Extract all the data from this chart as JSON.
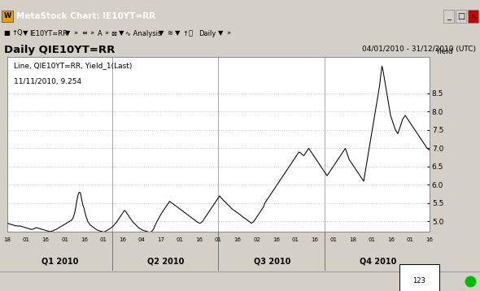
{
  "title_bar": "MetaStock Chart: IE10YT=RR",
  "chart_title": "Daily QIE10YT=RR",
  "date_range": "04/01/2010 - 31/12/2010 (UTC)",
  "ylabel": "Yield",
  "annotation_line1": "Line, QIE10YT=RR, Yield_1(Last)",
  "annotation_line2": "11/11/2010, 9.254",
  "ylim": [
    4.72,
    9.5
  ],
  "yticks": [
    5.0,
    5.5,
    6.0,
    6.5,
    7.0,
    7.5,
    8.0,
    8.5
  ],
  "bg_color": "#d4d0c8",
  "plot_bg": "#ffffff",
  "line_color": "#000000",
  "grid_color": "#b8b8b8",
  "x_quarter_labels": [
    "Q1 2010",
    "Q2 2010",
    "Q3 2010",
    "Q4 2010"
  ],
  "x_minor_ticks": [
    "18",
    "01",
    "16",
    "01",
    "16",
    "01",
    "16",
    "04",
    "17",
    "01",
    "16",
    "01",
    "16",
    "02",
    "16",
    "01",
    "16",
    "01",
    "18",
    "01",
    "16",
    "01",
    "16"
  ],
  "titlebar_color": "#0a246a",
  "titlebar_text_color": "#ffffff",
  "yields": [
    4.96,
    4.94,
    4.93,
    4.92,
    4.91,
    4.9,
    4.89,
    4.88,
    4.88,
    4.87,
    4.88,
    4.87,
    4.86,
    4.85,
    4.84,
    4.83,
    4.82,
    4.81,
    4.8,
    4.79,
    4.78,
    4.79,
    4.8,
    4.82,
    4.83,
    4.82,
    4.81,
    4.8,
    4.79,
    4.78,
    4.77,
    4.76,
    4.75,
    4.74,
    4.73,
    4.72,
    4.73,
    4.74,
    4.75,
    4.77,
    4.78,
    4.8,
    4.82,
    4.84,
    4.86,
    4.88,
    4.9,
    4.92,
    4.94,
    4.96,
    4.98,
    5.0,
    5.02,
    5.04,
    5.1,
    5.2,
    5.35,
    5.55,
    5.72,
    5.8,
    5.78,
    5.6,
    5.45,
    5.35,
    5.2,
    5.1,
    5.0,
    4.95,
    4.9,
    4.88,
    4.85,
    4.83,
    4.8,
    4.78,
    4.76,
    4.75,
    4.74,
    4.73,
    4.72,
    4.71,
    4.72,
    4.74,
    4.76,
    4.78,
    4.8,
    4.82,
    4.85,
    4.88,
    4.92,
    4.96,
    5.0,
    5.05,
    5.1,
    5.15,
    5.2,
    5.25,
    5.3,
    5.28,
    5.22,
    5.18,
    5.12,
    5.08,
    5.03,
    4.98,
    4.95,
    4.92,
    4.88,
    4.85,
    4.82,
    4.8,
    4.78,
    4.76,
    4.75,
    4.74,
    4.73,
    4.72,
    4.71,
    4.7,
    4.72,
    4.75,
    4.8,
    4.88,
    4.95,
    5.02,
    5.08,
    5.14,
    5.2,
    5.25,
    5.3,
    5.35,
    5.4,
    5.45,
    5.5,
    5.55,
    5.52,
    5.5,
    5.48,
    5.45,
    5.43,
    5.4,
    5.38,
    5.35,
    5.33,
    5.3,
    5.28,
    5.25,
    5.23,
    5.2,
    5.18,
    5.15,
    5.13,
    5.1,
    5.08,
    5.05,
    5.03,
    5.0,
    4.98,
    4.96,
    4.95,
    4.97,
    5.0,
    5.05,
    5.1,
    5.15,
    5.2,
    5.25,
    5.3,
    5.35,
    5.4,
    5.45,
    5.5,
    5.55,
    5.6,
    5.65,
    5.7,
    5.65,
    5.62,
    5.58,
    5.55,
    5.52,
    5.48,
    5.45,
    5.42,
    5.38,
    5.35,
    5.32,
    5.3,
    5.27,
    5.25,
    5.23,
    5.2,
    5.18,
    5.15,
    5.12,
    5.1,
    5.08,
    5.05,
    5.03,
    5.0,
    4.98,
    4.95,
    4.97,
    5.0,
    5.05,
    5.1,
    5.15,
    5.2,
    5.25,
    5.3,
    5.35,
    5.4,
    5.5,
    5.55,
    5.6,
    5.65,
    5.7,
    5.75,
    5.8,
    5.85,
    5.9,
    5.95,
    6.0,
    6.05,
    6.1,
    6.15,
    6.2,
    6.25,
    6.3,
    6.35,
    6.4,
    6.45,
    6.5,
    6.55,
    6.6,
    6.65,
    6.7,
    6.75,
    6.8,
    6.85,
    6.9,
    6.88,
    6.85,
    6.82,
    6.8,
    6.85,
    6.9,
    6.95,
    7.0,
    6.95,
    6.9,
    6.85,
    6.8,
    6.75,
    6.7,
    6.65,
    6.6,
    6.55,
    6.5,
    6.45,
    6.4,
    6.35,
    6.3,
    6.25,
    6.3,
    6.35,
    6.4,
    6.45,
    6.5,
    6.55,
    6.6,
    6.65,
    6.7,
    6.75,
    6.8,
    6.85,
    6.9,
    6.95,
    7.0,
    6.9,
    6.8,
    6.7,
    6.65,
    6.6,
    6.55,
    6.5,
    6.45,
    6.4,
    6.35,
    6.3,
    6.25,
    6.2,
    6.15,
    6.1,
    6.3,
    6.5,
    6.7,
    6.9,
    7.1,
    7.3,
    7.5,
    7.7,
    7.9,
    8.1,
    8.3,
    8.5,
    8.7,
    9.0,
    9.25,
    9.1,
    8.9,
    8.7,
    8.5,
    8.3,
    8.1,
    7.9,
    7.8,
    7.7,
    7.6,
    7.5,
    7.45,
    7.4,
    7.5,
    7.6,
    7.7,
    7.8,
    7.85,
    7.9,
    7.85,
    7.8,
    7.75,
    7.7,
    7.65,
    7.6,
    7.55,
    7.5,
    7.45,
    7.4,
    7.35,
    7.3,
    7.25,
    7.2,
    7.15,
    7.1,
    7.05,
    7.0,
    6.98,
    6.95
  ]
}
